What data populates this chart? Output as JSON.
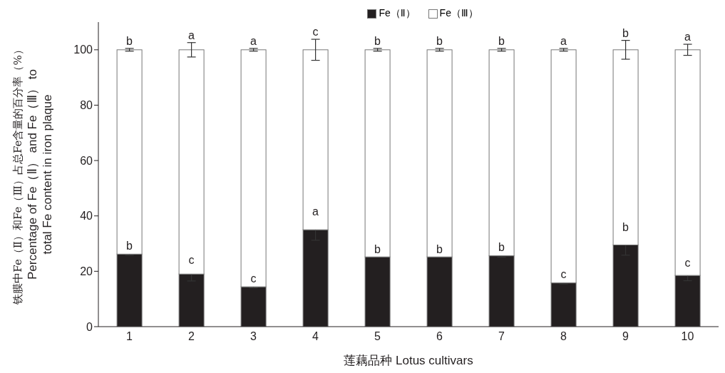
{
  "chart_data": {
    "type": "bar",
    "stacked": true,
    "xlabel": "莲藕品种  Lotus cultivars",
    "ylabel": "铁膜中Fe（Ⅱ）和Fe（Ⅲ）占总Fe含量的百分率（%）\nPercentage of Fe（Ⅱ） and  Fe（Ⅲ） to\ntotal Fe content in iron plaque",
    "categories": [
      "1",
      "2",
      "3",
      "4",
      "5",
      "6",
      "7",
      "8",
      "9",
      "10"
    ],
    "series": [
      {
        "name": "Fe（Ⅱ）",
        "color": "#231f20",
        "values": [
          26.2,
          19.0,
          14.4,
          35.0,
          25.2,
          25.2,
          25.6,
          15.8,
          29.5,
          18.5
        ],
        "errors": [
          0.4,
          2.5,
          0.4,
          3.8,
          null,
          null,
          0.5,
          0.4,
          3.7,
          1.9
        ]
      },
      {
        "name": "Fe（Ⅲ）",
        "color": "#ffffff",
        "values": [
          73.8,
          81.0,
          85.6,
          65.0,
          74.8,
          74.8,
          74.4,
          84.2,
          70.5,
          81.5
        ],
        "errors": [
          0.5,
          2.6,
          0.5,
          3.8,
          0.5,
          0.5,
          0.5,
          0.5,
          3.4,
          2.0
        ]
      }
    ],
    "ylim": [
      0,
      110
    ],
    "yticks": [
      0,
      20,
      40,
      60,
      80,
      100
    ],
    "grid": false,
    "legend": "top",
    "annotations": [
      {
        "text": "b",
        "x": "1",
        "y": 26.6
      },
      {
        "text": "c",
        "x": "2",
        "y": 21.5
      },
      {
        "text": "c",
        "x": "3",
        "y": 14.8
      },
      {
        "text": "a",
        "x": "4",
        "y": 38.8
      },
      {
        "text": "b",
        "x": "5",
        "y": 25.2
      },
      {
        "text": "b",
        "x": "6",
        "y": 25.2
      },
      {
        "text": "b",
        "x": "7",
        "y": 26.1
      },
      {
        "text": "c",
        "x": "8",
        "y": 16.2
      },
      {
        "text": "b",
        "x": "9",
        "y": 33.2
      },
      {
        "text": "c",
        "x": "10",
        "y": 20.4
      },
      {
        "text": "b",
        "x": "1",
        "y": 100.5
      },
      {
        "text": "a",
        "x": "2",
        "y": 102.6
      },
      {
        "text": "a",
        "x": "3",
        "y": 100.5
      },
      {
        "text": "c",
        "x": "4",
        "y": 103.8
      },
      {
        "text": "b",
        "x": "5",
        "y": 100.5
      },
      {
        "text": "b",
        "x": "6",
        "y": 100.5
      },
      {
        "text": "b",
        "x": "7",
        "y": 100.5
      },
      {
        "text": "a",
        "x": "8",
        "y": 100.5
      },
      {
        "text": "b",
        "x": "9",
        "y": 103.4
      },
      {
        "text": "a",
        "x": "10",
        "y": 102.0
      }
    ]
  }
}
